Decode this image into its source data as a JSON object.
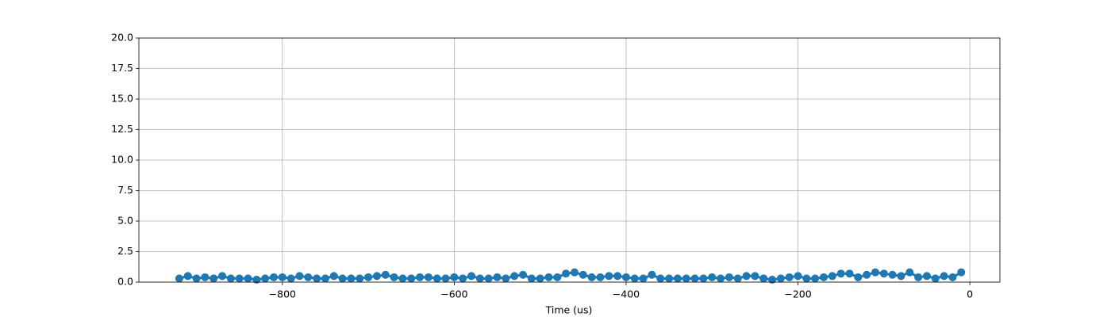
{
  "chart_data": {
    "type": "line",
    "x_label": "Time (us)",
    "x": [
      -920,
      -910,
      -900,
      -890,
      -880,
      -870,
      -860,
      -850,
      -840,
      -830,
      -820,
      -810,
      -800,
      -790,
      -780,
      -770,
      -760,
      -750,
      -740,
      -730,
      -720,
      -710,
      -700,
      -690,
      -680,
      -670,
      -660,
      -650,
      -640,
      -630,
      -620,
      -610,
      -600,
      -590,
      -580,
      -570,
      -560,
      -550,
      -540,
      -530,
      -520,
      -510,
      -500,
      -490,
      -480,
      -470,
      -460,
      -450,
      -440,
      -430,
      -420,
      -410,
      -400,
      -390,
      -380,
      -370,
      -360,
      -350,
      -340,
      -330,
      -320,
      -310,
      -300,
      -290,
      -280,
      -270,
      -260,
      -250,
      -240,
      -230,
      -220,
      -210,
      -200,
      -190,
      -180,
      -170,
      -160,
      -150,
      -140,
      -130,
      -120,
      -110,
      -100,
      -90,
      -80,
      -70,
      -60,
      -50,
      -40,
      -30,
      -20,
      -10
    ],
    "series": [
      {
        "color": "#1f77b4",
        "values": [
          0.3,
          0.5,
          0.3,
          0.4,
          0.3,
          0.5,
          0.3,
          0.3,
          0.3,
          0.2,
          0.3,
          0.4,
          0.4,
          0.3,
          0.5,
          0.4,
          0.3,
          0.3,
          0.5,
          0.3,
          0.3,
          0.3,
          0.4,
          0.5,
          0.6,
          0.4,
          0.3,
          0.3,
          0.4,
          0.4,
          0.3,
          0.3,
          0.4,
          0.3,
          0.5,
          0.3,
          0.3,
          0.4,
          0.3,
          0.5,
          0.6,
          0.3,
          0.3,
          0.4,
          0.4,
          0.7,
          0.8,
          0.6,
          0.4,
          0.4,
          0.5,
          0.5,
          0.4,
          0.3,
          0.3,
          0.6,
          0.3,
          0.3,
          0.3,
          0.3,
          0.3,
          0.3,
          0.4,
          0.3,
          0.4,
          0.3,
          0.5,
          0.5,
          0.3,
          0.2,
          0.3,
          0.4,
          0.5,
          0.3,
          0.3,
          0.4,
          0.5,
          0.7,
          0.7,
          0.4,
          0.6,
          0.8,
          0.7,
          0.6,
          0.5,
          0.8,
          0.4,
          0.5,
          0.3,
          0.5,
          0.4,
          0.8
        ]
      }
    ],
    "xlim": [
      -967,
      35
    ],
    "xticks": [
      {
        "value": -800,
        "label": "−800"
      },
      {
        "value": -600,
        "label": "−600"
      },
      {
        "value": -400,
        "label": "−400"
      },
      {
        "value": -200,
        "label": "−200"
      },
      0
    ],
    "ylim": [
      0,
      20
    ],
    "yticks": [
      {
        "value": 0,
        "label": "0.0"
      },
      2.5,
      {
        "value": 5,
        "label": "5.0"
      },
      7.5,
      {
        "value": 10,
        "label": "10.0"
      },
      12.5,
      {
        "value": 15,
        "label": "15.0"
      },
      17.5,
      {
        "value": 20,
        "label": "20.0"
      }
    ],
    "grid": true
  }
}
